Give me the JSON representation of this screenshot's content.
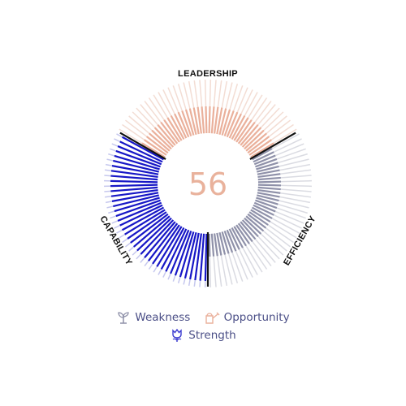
{
  "score": "56",
  "segments": {
    "top": {
      "label": "LEADERSHIP",
      "color_faint": "#f3ddd4",
      "color_strong": "#eab09b"
    },
    "right": {
      "label": "EFFICIENCY",
      "color_faint": "#dadbe2",
      "color_strong": "#8f91a9"
    },
    "left": {
      "label": "CAPABILITY",
      "color_faint": "#c6c8ee",
      "color_strong": "#1717c6"
    }
  },
  "legend": {
    "weakness": {
      "label": "Weakness",
      "icon": "sprout-icon",
      "color": "#8f91a9"
    },
    "opportunity": {
      "label": "Opportunity",
      "icon": "watering-can-icon",
      "color": "#eab09b"
    },
    "strength": {
      "label": "Strength",
      "icon": "tulip-icon",
      "color": "#3b3bd0"
    }
  }
}
